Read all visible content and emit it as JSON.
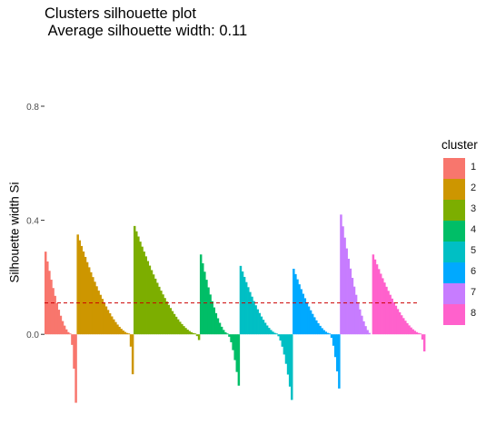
{
  "chart_data": {
    "type": "bar",
    "title": "Clusters silhouette plot",
    "subtitle": " Average silhouette width: 0.11",
    "xlabel": "",
    "ylabel": "Silhouette width Si",
    "average_silhouette": 0.11,
    "ylim": [
      -0.27,
      0.87
    ],
    "y_ticks": [
      "0.0",
      "0.4",
      "0.8"
    ],
    "y_tick_values": [
      0.0,
      0.4,
      0.8
    ],
    "grid": false,
    "legend": {
      "title": "cluster",
      "placement": "right",
      "entries": [
        "1",
        "2",
        "3",
        "4",
        "5",
        "6",
        "7",
        "8"
      ]
    },
    "series": [
      {
        "name": "1",
        "color": "#F8766D",
        "n": 17,
        "max": 0.29,
        "min": -0.24,
        "n_negative": 3
      },
      {
        "name": "2",
        "color": "#CD9600",
        "n": 30,
        "max": 0.35,
        "min": -0.14,
        "n_negative": 2
      },
      {
        "name": "3",
        "color": "#7CAE00",
        "n": 35,
        "max": 0.38,
        "min": -0.02,
        "n_negative": 2
      },
      {
        "name": "4",
        "color": "#00BE67",
        "n": 21,
        "max": 0.28,
        "min": -0.18,
        "n_negative": 6
      },
      {
        "name": "5",
        "color": "#00BFC4",
        "n": 28,
        "max": 0.24,
        "min": -0.23,
        "n_negative": 8
      },
      {
        "name": "6",
        "color": "#00A9FF",
        "n": 25,
        "max": 0.23,
        "min": -0.19,
        "n_negative": 5
      },
      {
        "name": "7",
        "color": "#C77CFF",
        "n": 17,
        "max": 0.42,
        "min": 0.0,
        "n_negative": 0
      },
      {
        "name": "8",
        "color": "#FF61CC",
        "n": 28,
        "max": 0.28,
        "min": -0.06,
        "n_negative": 2
      }
    ]
  }
}
